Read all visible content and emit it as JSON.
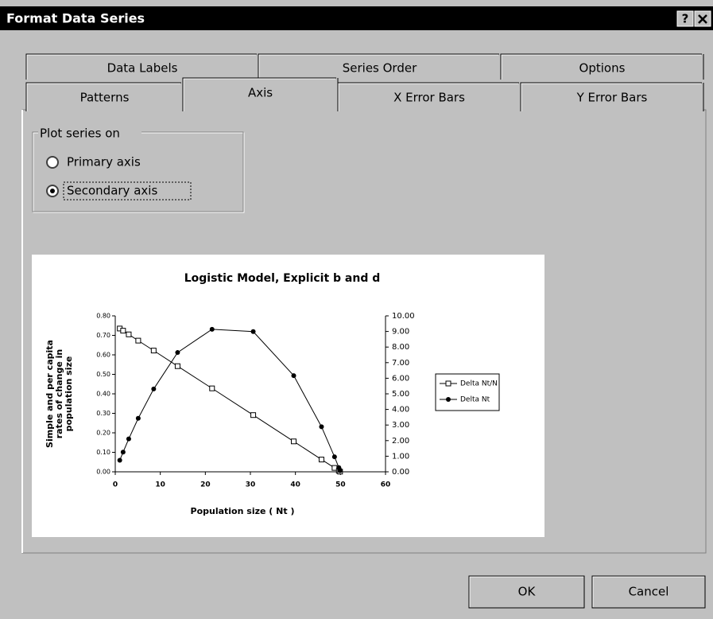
{
  "dialog": {
    "title": "Format Data Series",
    "help_button": "?",
    "tabs_back_row": [
      "Data Labels",
      "Series Order",
      "Options"
    ],
    "tabs_front_row": [
      "Patterns",
      "Axis",
      "X Error Bars",
      "Y Error Bars"
    ],
    "active_tab": "Axis",
    "group_label": "Plot series on",
    "options": [
      {
        "label": "Primary axis",
        "checked": false
      },
      {
        "label": "Secondary axis",
        "checked": true
      }
    ],
    "buttons": [
      "OK",
      "Cancel"
    ]
  },
  "chart_data": {
    "type": "line",
    "title": "Logistic Model, Explicit b and d",
    "xlabel": "Population size ( Nt )",
    "ylabel": [
      "Simple and per capita",
      "rates of change in",
      "population size"
    ],
    "x": [
      1,
      1.74,
      2.99,
      5.1,
      8.53,
      13.84,
      21.49,
      30.63,
      39.62,
      45.79,
      48.68,
      49.64,
      49.91
    ],
    "series": [
      {
        "name": "Delta Nt/N",
        "color": "#000000",
        "marker": "square",
        "axis": "y",
        "values": [
          0.735,
          0.724,
          0.705,
          0.673,
          0.622,
          0.542,
          0.428,
          0.291,
          0.156,
          0.063,
          0.02,
          0.005,
          0.001
        ]
      },
      {
        "name": "Delta Nt",
        "color": "#000000",
        "marker": "dot",
        "axis": "y2",
        "values": [
          0.74,
          1.26,
          2.11,
          3.43,
          5.31,
          7.65,
          9.14,
          8.99,
          6.17,
          2.89,
          0.96,
          0.27,
          0.07
        ]
      }
    ],
    "xlim": [
      0,
      60
    ],
    "xticks": [
      0,
      10,
      20,
      30,
      40,
      50,
      60
    ],
    "ylim": [
      0,
      0.8
    ],
    "yticks": [
      {
        "value": 0,
        "label": "0.00"
      },
      {
        "value": 0.1,
        "label": "0.10"
      },
      {
        "value": 0.2,
        "label": "0.20"
      },
      {
        "value": 0.3,
        "label": "0.30"
      },
      {
        "value": 0.4,
        "label": "0.40"
      },
      {
        "value": 0.5,
        "label": "0.50"
      },
      {
        "value": 0.6,
        "label": "0.60"
      },
      {
        "value": 0.7,
        "label": "0.70"
      },
      {
        "value": 0.8,
        "label": "0.80"
      }
    ],
    "y2lim": [
      0,
      10
    ],
    "y2ticks": [
      {
        "value": 0,
        "label": "0.00"
      },
      {
        "value": 1,
        "label": "1.00"
      },
      {
        "value": 2,
        "label": "2.00"
      },
      {
        "value": 3,
        "label": "3.00"
      },
      {
        "value": 4,
        "label": "4.00"
      },
      {
        "value": 5,
        "label": "5.00"
      },
      {
        "value": 6,
        "label": "6.00"
      },
      {
        "value": 7,
        "label": "7.00"
      },
      {
        "value": 8,
        "label": "8.00"
      },
      {
        "value": 9,
        "label": "9.00"
      },
      {
        "value": 10,
        "label": "10.00"
      }
    ],
    "legend": "right",
    "grid": false
  }
}
